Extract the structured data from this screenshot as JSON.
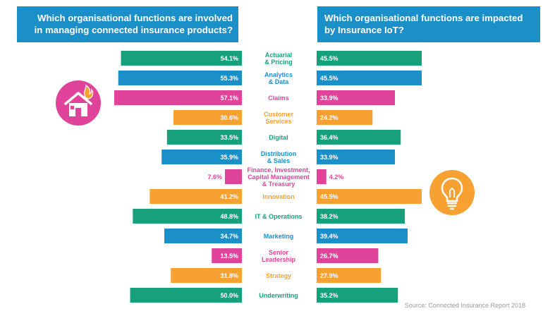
{
  "headers": {
    "left": [
      "Which organisational functions are involved",
      "in managing connected insurance products?"
    ],
    "right": [
      "Which organisational functions are impacted",
      "by Insurance IoT?"
    ]
  },
  "colors": {
    "header": "#1b8fc7",
    "green": "#17a07c",
    "blue": "#1b8fc7",
    "pink": "#e0449a",
    "orange": "#f7a133"
  },
  "icons": {
    "left": "house-on-fire-icon",
    "right": "lightbulb-icon"
  },
  "source": "Source: Connected Insurance Report 2018",
  "chart_data": {
    "type": "bar",
    "categories": [
      [
        "Actuarial",
        "& Pricing"
      ],
      [
        "Analytics",
        "& Data"
      ],
      [
        "Claims"
      ],
      [
        "Customer",
        "Services"
      ],
      [
        "Digital"
      ],
      [
        "Distribution",
        "& Sales"
      ],
      [
        "Finance, Investment,",
        "Capital Management",
        "& Treasury"
      ],
      [
        "Innovation"
      ],
      [
        "IT & Operations"
      ],
      [
        "Marketing"
      ],
      [
        "Senior",
        "Leadership"
      ],
      [
        "Strategy"
      ],
      [
        "Underwriting"
      ]
    ],
    "category_colors": [
      "green",
      "blue",
      "pink",
      "orange",
      "green",
      "blue",
      "pink",
      "orange",
      "green",
      "blue",
      "pink",
      "orange",
      "green"
    ],
    "series": [
      {
        "values": [
          54.1,
          55.3,
          57.1,
          30.6,
          33.5,
          35.9,
          7.6,
          41.2,
          48.8,
          34.7,
          13.5,
          31.8,
          50.0
        ],
        "labels": [
          "54.1%",
          "55.3%",
          "57.1%",
          "30.6%",
          "33.5%",
          "35.9%",
          "7.6%",
          "41.2%",
          "48.8%",
          "34.7%",
          "13.5%",
          "31.8%",
          "50.0%"
        ]
      },
      {
        "values": [
          45.5,
          45.5,
          33.9,
          24.2,
          36.4,
          33.9,
          4.2,
          45.5,
          38.2,
          39.4,
          26.7,
          27.9,
          35.2
        ],
        "labels": [
          "45.5%",
          "45.5%",
          "33.9%",
          "24.2%",
          "36.4%",
          "33.9%",
          "4.2%",
          "45.5%",
          "38.2%",
          "39.4%",
          "26.7%",
          "27.9%",
          "35.2%"
        ]
      }
    ]
  }
}
